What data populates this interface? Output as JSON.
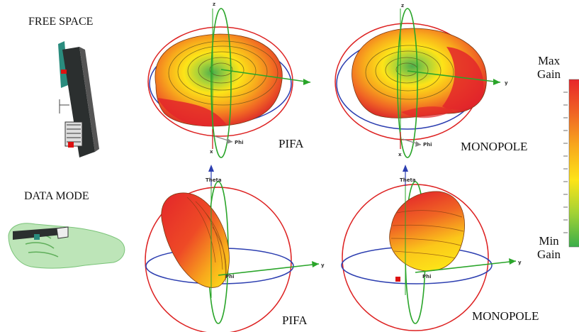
{
  "rows": [
    {
      "label": "FREE SPACE"
    },
    {
      "label": "DATA MODE"
    }
  ],
  "panels": [
    {
      "id": "fs-pifa",
      "antenna": "PIFA"
    },
    {
      "id": "fs-monopole",
      "antenna": "MONOPOLE"
    },
    {
      "id": "dm-pifa",
      "antenna": "PIFA"
    },
    {
      "id": "dm-monopole",
      "antenna": "MONOPOLE"
    }
  ],
  "axes": {
    "z": "z",
    "y": "y",
    "x": "x",
    "phi": "Phi",
    "theta": "Theta"
  },
  "colorbar": {
    "max_label_line1": "Max",
    "max_label_line2": "Gain",
    "min_label_line1": "Min",
    "min_label_line2": "Gain",
    "colors": [
      "#e8262a",
      "#ee4a26",
      "#f26a22",
      "#f58a1f",
      "#f8a91c",
      "#fbc71a",
      "#fde418",
      "#d9e11f",
      "#a9d534",
      "#7cc846",
      "#55bb4f",
      "#3aae4a"
    ]
  },
  "pattern_colors": {
    "high": "#e8262a",
    "mid": "#f6a21d",
    "low": "#fde418",
    "min": "#5dbb45"
  }
}
